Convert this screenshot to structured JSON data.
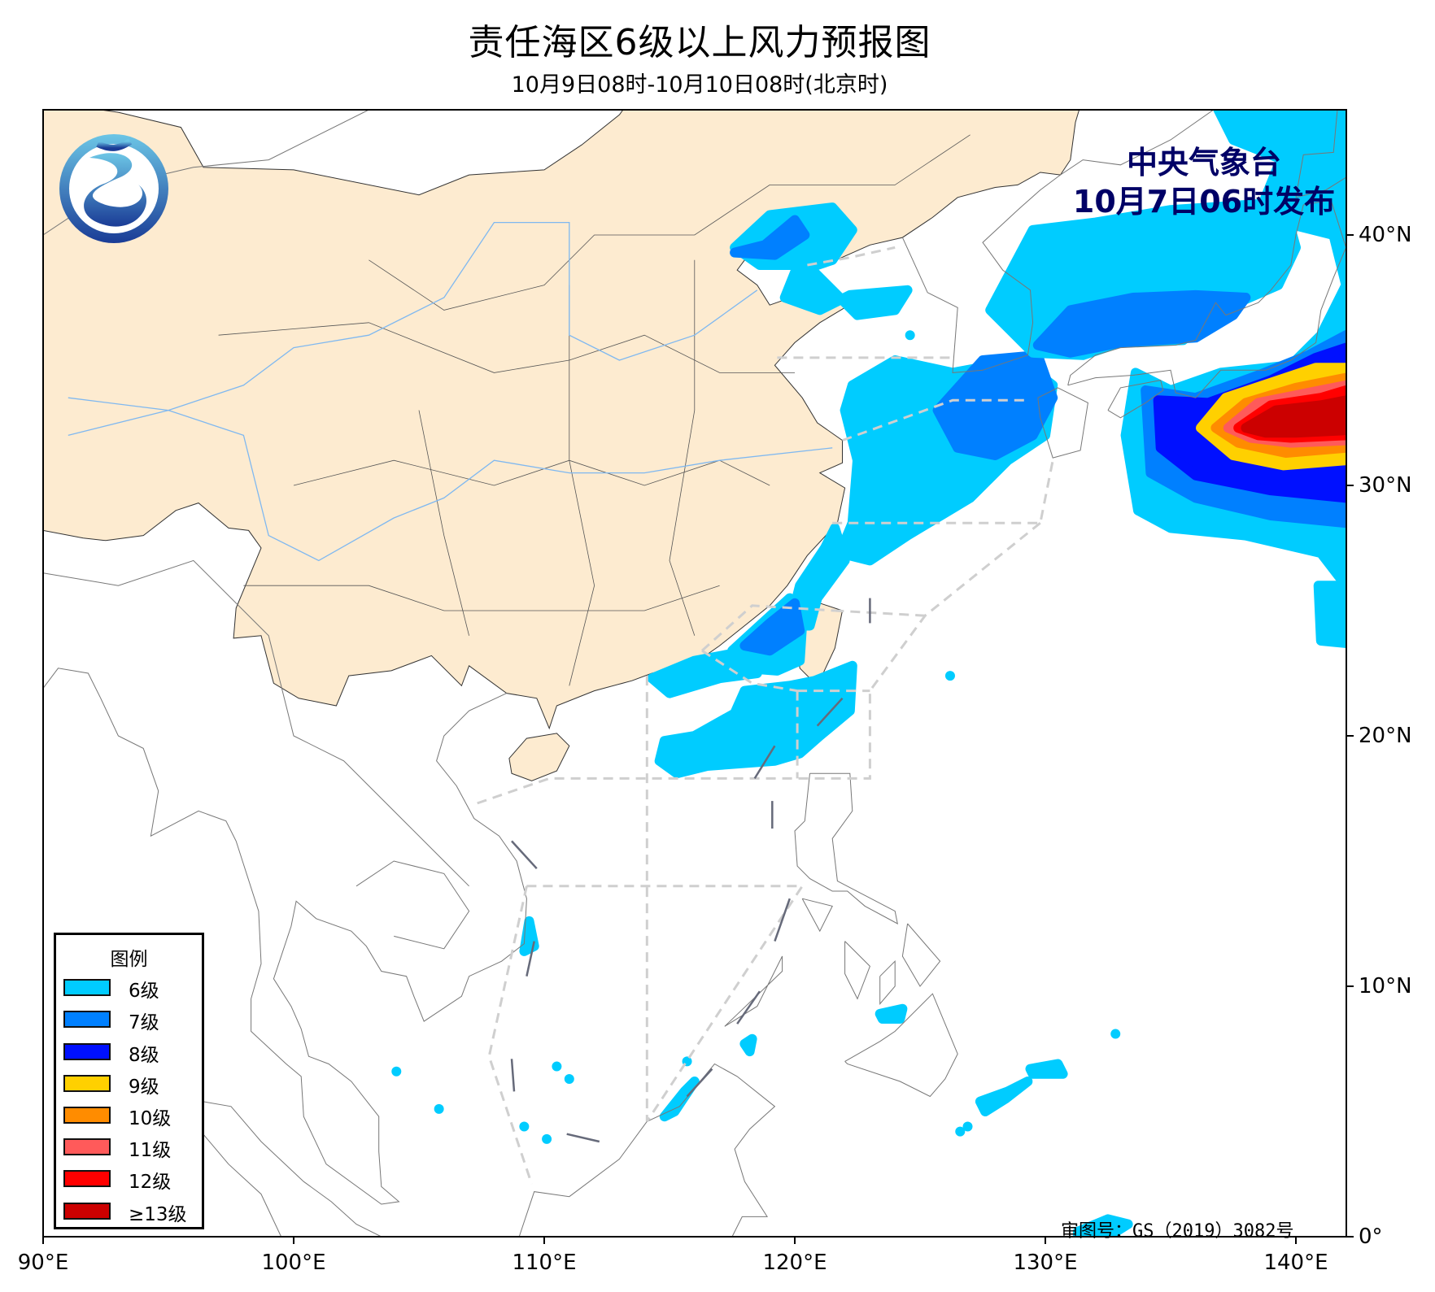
{
  "header": {
    "title": "责任海区6级以上风力预报图",
    "subtitle": "10月9日08时-10月10日08时(北京时)"
  },
  "agency": {
    "name": "中央气象台",
    "issued": "10月7日06时发布",
    "text_color": "#000066",
    "logo": "cma-logo"
  },
  "map": {
    "land_china_color": "#FDEBD0",
    "river_color": "#7FB8F0",
    "x_ticks": [
      "90°E",
      "100°E",
      "110°E",
      "120°E",
      "130°E",
      "140°E"
    ],
    "y_ticks": [
      "0°",
      "10°N",
      "20°N",
      "30°N",
      "40°N"
    ],
    "approval_number": "审图号：GS（2019）3082号"
  },
  "legend": {
    "title": "图例",
    "items": [
      {
        "label": "6级",
        "color": "#00CCFF"
      },
      {
        "label": "7级",
        "color": "#0080FF"
      },
      {
        "label": "8级",
        "color": "#0010FF"
      },
      {
        "label": "9级",
        "color": "#FFD000"
      },
      {
        "label": "10级",
        "color": "#FF8C00"
      },
      {
        "label": "11级",
        "color": "#FF5A5A"
      },
      {
        "label": "12级",
        "color": "#FF0000"
      },
      {
        "label": "≥13级",
        "color": "#CC0000"
      }
    ]
  }
}
